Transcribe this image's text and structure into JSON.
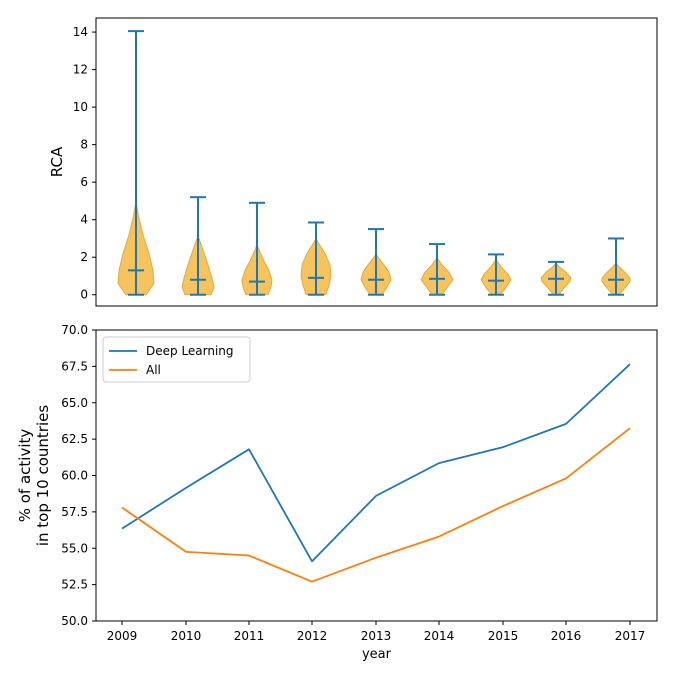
{
  "chart_data": [
    {
      "type": "violin",
      "title": "",
      "xlabel": "",
      "ylabel": "RCA",
      "ylim": [
        -0.6,
        14.75
      ],
      "yticks": [
        0,
        2,
        4,
        6,
        8,
        10,
        12,
        14
      ],
      "categories": [
        "2009",
        "2010",
        "2011",
        "2012",
        "2013",
        "2014",
        "2015",
        "2016",
        "2017"
      ],
      "min": [
        0,
        0,
        0,
        0,
        0,
        0,
        0,
        0,
        0
      ],
      "max": [
        14.05,
        5.2,
        4.9,
        3.85,
        3.5,
        2.7,
        2.15,
        1.75,
        3.0
      ],
      "mean": [
        1.3,
        0.8,
        0.7,
        0.9,
        0.8,
        0.85,
        0.75,
        0.85,
        0.8
      ],
      "colors": {
        "body": "#f5b841",
        "body_edge": "#e0a030",
        "lines": "#1f77b4"
      }
    },
    {
      "type": "line",
      "title": "",
      "xlabel": "year",
      "ylabel_lines": [
        "% of activity",
        "in top 10 countries"
      ],
      "ylim": [
        50.0,
        70.0
      ],
      "yticks": [
        "50.0",
        "52.5",
        "55.0",
        "57.5",
        "60.0",
        "62.5",
        "65.0",
        "67.5",
        "70.0"
      ],
      "x": [
        "2009",
        "2010",
        "2011",
        "2012",
        "2013",
        "2014",
        "2015",
        "2016",
        "2017"
      ],
      "legend_position": "top-left",
      "series": [
        {
          "name": "Deep Learning",
          "color": "#1f77b4",
          "values": [
            56.35,
            59.15,
            61.8,
            54.1,
            58.6,
            60.85,
            61.95,
            63.55,
            67.65
          ]
        },
        {
          "name": "All",
          "color": "#ff7f0e",
          "values": [
            57.8,
            54.75,
            54.5,
            52.7,
            54.35,
            55.8,
            57.9,
            59.8,
            63.25
          ]
        }
      ]
    }
  ]
}
